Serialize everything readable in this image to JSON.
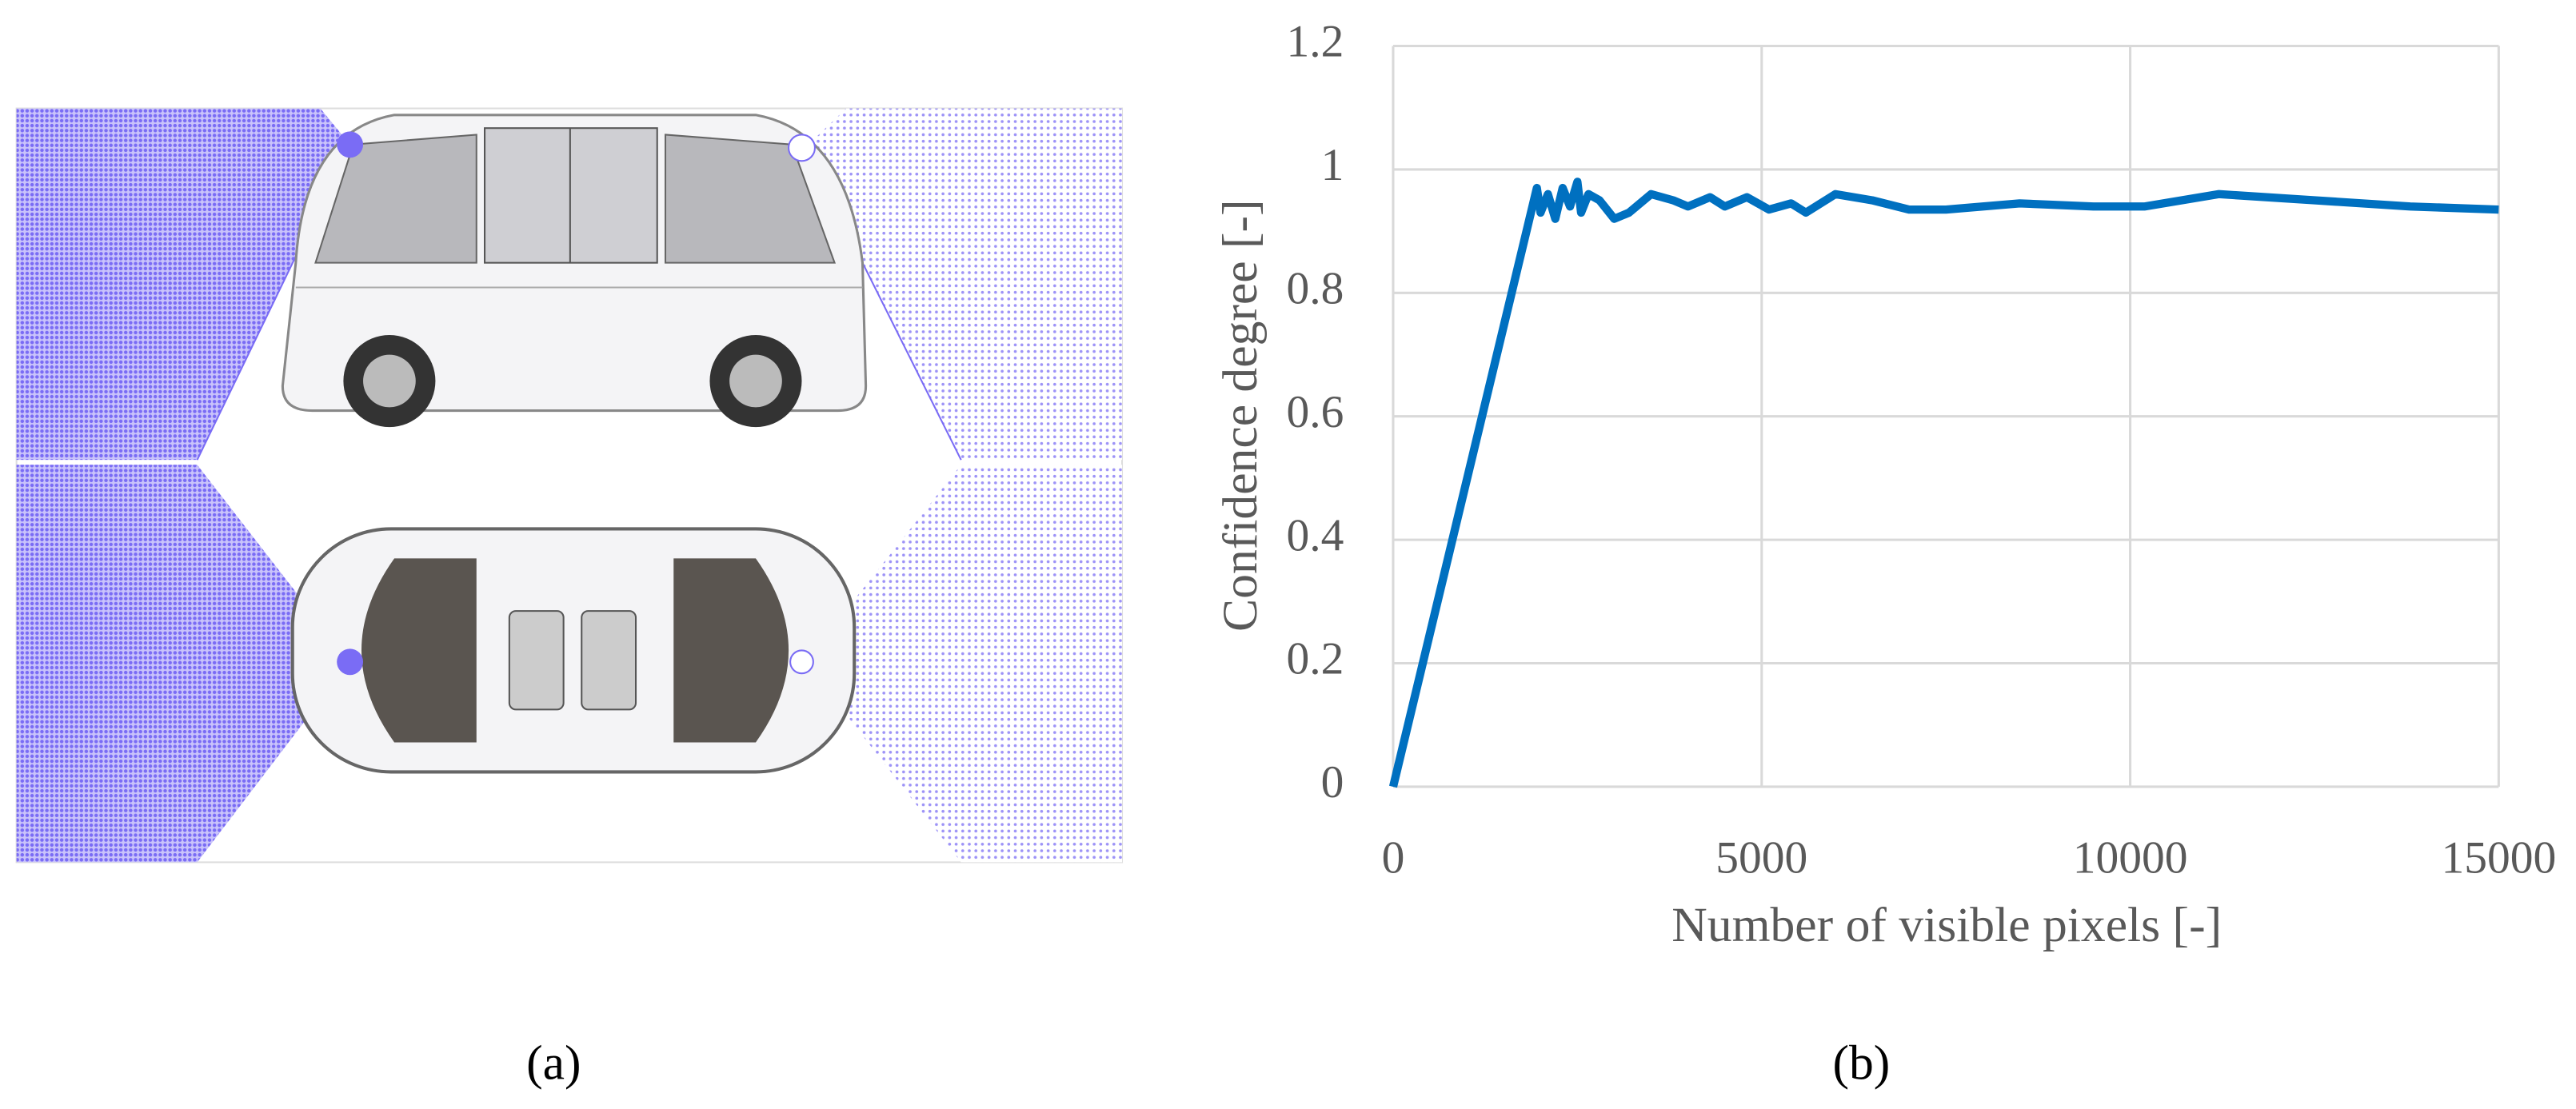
{
  "chart_data": {
    "type": "line",
    "x_label": "Number of visible pixels [-]",
    "y_label": "Confidence degree [-]",
    "x": [
      0,
      1950,
      2000,
      2100,
      2200,
      2300,
      2400,
      2500,
      2550,
      2650,
      2800,
      3000,
      3200,
      3500,
      3800,
      4000,
      4300,
      4500,
      4800,
      5100,
      5400,
      5600,
      6000,
      6500,
      7000,
      7500,
      8500,
      9500,
      10200,
      11200,
      12500,
      13800,
      15000
    ],
    "values": [
      0,
      0.97,
      0.93,
      0.96,
      0.92,
      0.97,
      0.94,
      0.98,
      0.93,
      0.96,
      0.95,
      0.92,
      0.93,
      0.96,
      0.95,
      0.94,
      0.955,
      0.94,
      0.955,
      0.935,
      0.945,
      0.93,
      0.96,
      0.95,
      0.935,
      0.935,
      0.945,
      0.94,
      0.94,
      0.96,
      0.95,
      0.94,
      0.935
    ],
    "color": "#0070c0",
    "xlim": [
      0,
      15000
    ],
    "xticks": [
      0,
      5000,
      10000,
      15000
    ],
    "ylim": [
      0,
      1.2
    ],
    "yticks": [
      0,
      0.2,
      0.4,
      0.6,
      0.8,
      1,
      1.2
    ],
    "grid": true
  },
  "panel_labels": {
    "a": "(a)",
    "b": "(b)"
  }
}
